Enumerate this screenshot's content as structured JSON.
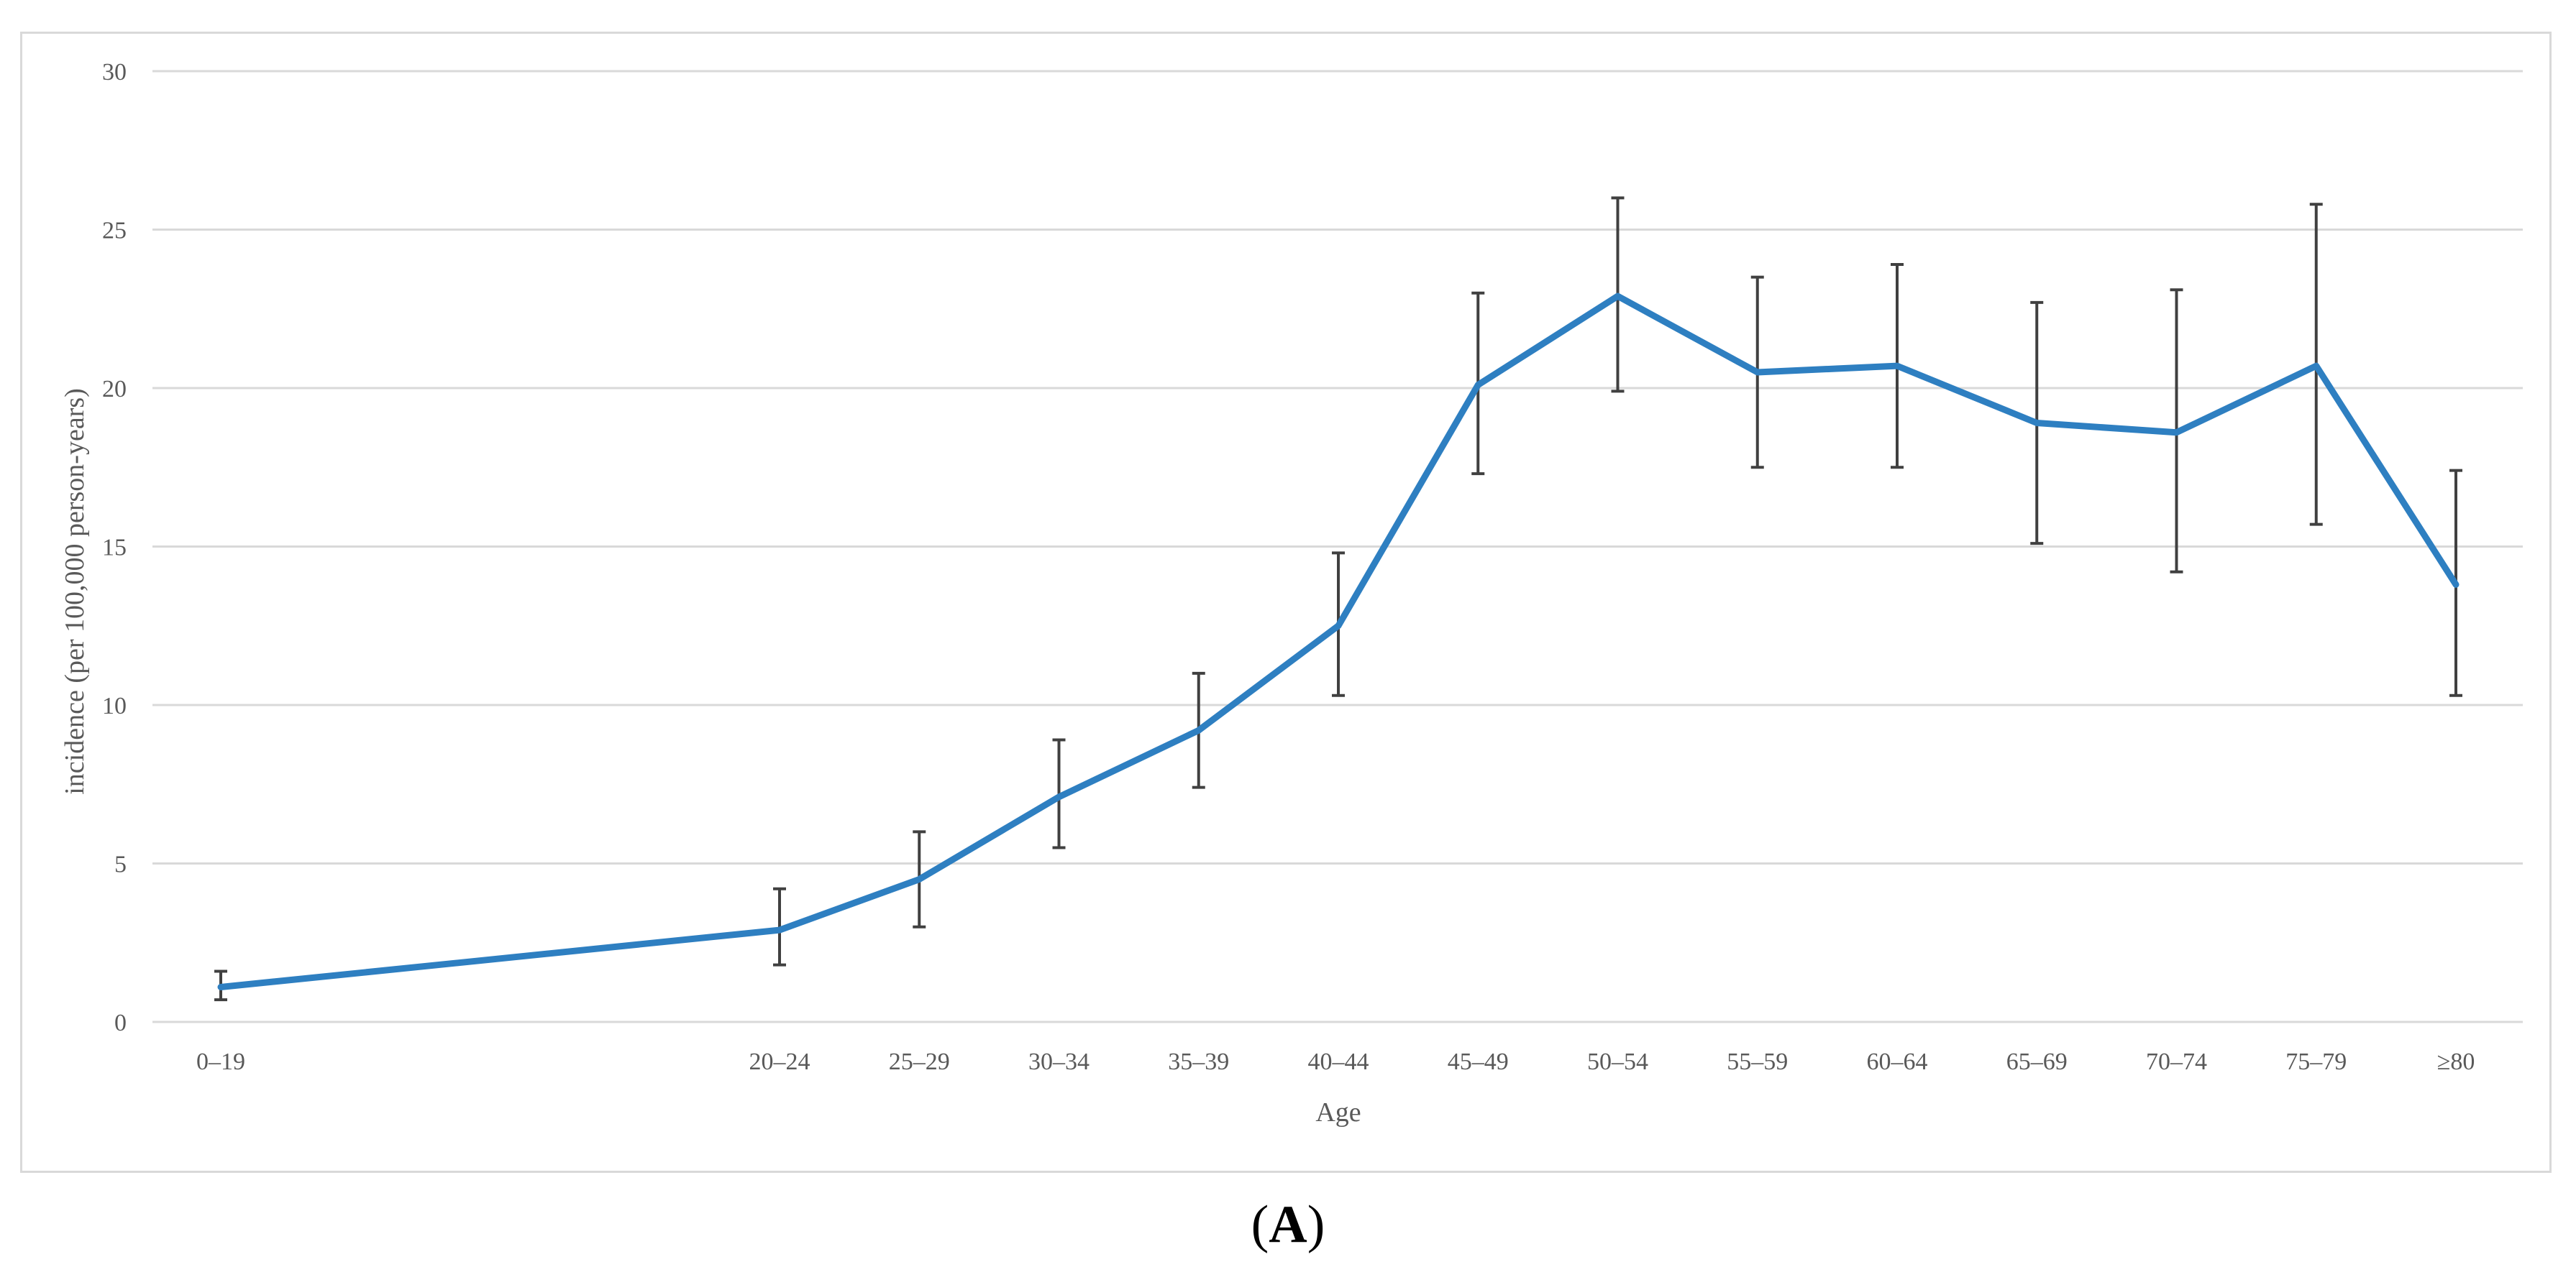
{
  "panel_label_open": "(",
  "panel_label_letter": "A",
  "panel_label_close": ")",
  "colors": {
    "line": "#2e7fc1",
    "error_bar": "#404040",
    "grid": "#d9d9d9",
    "text": "#595959"
  },
  "chart_data": {
    "type": "line",
    "title": "",
    "xlabel": "Age",
    "ylabel": "incidence (per 100,000 person-years)",
    "ylim": [
      0,
      30
    ],
    "yticks": [
      0,
      5,
      10,
      15,
      20,
      25,
      30
    ],
    "grid": true,
    "legend": "none",
    "x_axis_scale": "age in years (0–19 group plotted at age 0 position; gap reflects wider interval)",
    "categories": [
      "0–19",
      "20–24",
      "25–29",
      "30–34",
      "35–39",
      "40–44",
      "45–49",
      "50–54",
      "55–59",
      "60–64",
      "65–69",
      "70–74",
      "75–79",
      "≥80"
    ],
    "x_positions": [
      0,
      20,
      25,
      30,
      35,
      40,
      45,
      50,
      55,
      60,
      65,
      70,
      75,
      80
    ],
    "series": [
      {
        "values": [
          1.1,
          2.9,
          4.5,
          7.1,
          9.2,
          12.5,
          20.1,
          22.9,
          20.5,
          20.7,
          18.9,
          18.6,
          20.7,
          13.8
        ],
        "ci_lower": [
          0.7,
          1.8,
          3.0,
          5.5,
          7.4,
          10.3,
          17.3,
          19.9,
          17.5,
          17.5,
          15.1,
          14.2,
          15.7,
          10.3
        ],
        "ci_upper": [
          1.6,
          4.2,
          6.0,
          8.9,
          11.0,
          14.8,
          23.0,
          26.0,
          23.5,
          23.9,
          22.7,
          23.1,
          25.8,
          17.4
        ]
      }
    ]
  }
}
